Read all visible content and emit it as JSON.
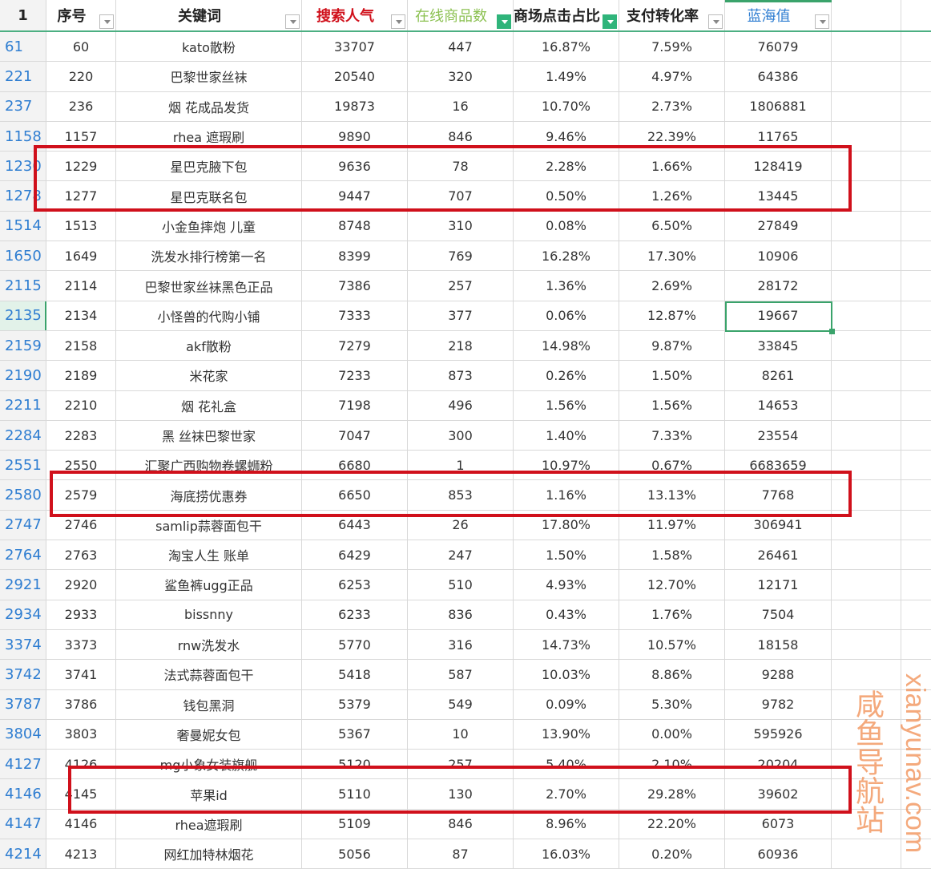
{
  "headers": {
    "corner": "1",
    "c1": "序号",
    "c2": "关键词",
    "c3": "搜索人气",
    "c4": "在线商品数",
    "c5": "商场点击占比",
    "c6": "支付转化率",
    "c7": "蓝海值"
  },
  "header_colors": {
    "c3": "#d0101b",
    "c4": "#8cc152",
    "c7": "#2e7dd1"
  },
  "filter_icon": "dropdown-arrow",
  "active_filter_icon": "funnel-icon",
  "rows": [
    [
      "61",
      "60",
      "kato散粉",
      "33707",
      "447",
      "16.87%",
      "7.59%",
      "76079"
    ],
    [
      "221",
      "220",
      "巴黎世家丝袜",
      "20540",
      "320",
      "1.49%",
      "4.97%",
      "64386"
    ],
    [
      "237",
      "236",
      "烟 花成品发货",
      "19873",
      "16",
      "10.70%",
      "2.73%",
      "1806881"
    ],
    [
      "1158",
      "1157",
      "rhea 遮瑕刷",
      "9890",
      "846",
      "9.46%",
      "22.39%",
      "11765"
    ],
    [
      "1230",
      "1229",
      "星巴克腋下包",
      "9636",
      "78",
      "2.28%",
      "1.66%",
      "128419"
    ],
    [
      "1278",
      "1277",
      "星巴克联名包",
      "9447",
      "707",
      "0.50%",
      "1.26%",
      "13445"
    ],
    [
      "1514",
      "1513",
      "小金鱼摔炮 儿童",
      "8748",
      "310",
      "0.08%",
      "6.50%",
      "27849"
    ],
    [
      "1650",
      "1649",
      "洗发水排行榜第一名",
      "8399",
      "769",
      "16.28%",
      "17.30%",
      "10906"
    ],
    [
      "2115",
      "2114",
      "巴黎世家丝袜黑色正品",
      "7386",
      "257",
      "1.36%",
      "2.69%",
      "28172"
    ],
    [
      "2135",
      "2134",
      "小怪兽的代购小铺",
      "7333",
      "377",
      "0.06%",
      "12.87%",
      "19667"
    ],
    [
      "2159",
      "2158",
      "akf散粉",
      "7279",
      "218",
      "14.98%",
      "9.87%",
      "33845"
    ],
    [
      "2190",
      "2189",
      "米花家",
      "7233",
      "873",
      "0.26%",
      "1.50%",
      "8261"
    ],
    [
      "2211",
      "2210",
      "烟 花礼盒",
      "7198",
      "496",
      "1.56%",
      "1.56%",
      "14653"
    ],
    [
      "2284",
      "2283",
      "黑 丝袜巴黎世家",
      "7047",
      "300",
      "1.40%",
      "7.33%",
      "23554"
    ],
    [
      "2551",
      "2550",
      "汇聚广西购物卷螺蛳粉",
      "6680",
      "1",
      "10.97%",
      "0.67%",
      "6683659"
    ],
    [
      "2580",
      "2579",
      "海底捞优惠券",
      "6650",
      "853",
      "1.16%",
      "13.13%",
      "7768"
    ],
    [
      "2747",
      "2746",
      "samlip蒜蓉面包干",
      "6443",
      "26",
      "17.80%",
      "11.97%",
      "306941"
    ],
    [
      "2764",
      "2763",
      "淘宝人生 账单",
      "6429",
      "247",
      "1.50%",
      "1.58%",
      "26461"
    ],
    [
      "2921",
      "2920",
      "鲨鱼裤ugg正品",
      "6253",
      "510",
      "4.93%",
      "12.70%",
      "12171"
    ],
    [
      "2934",
      "2933",
      "bissnny",
      "6233",
      "836",
      "0.43%",
      "1.76%",
      "7504"
    ],
    [
      "3374",
      "3373",
      "rnw洗发水",
      "5770",
      "316",
      "14.73%",
      "10.57%",
      "18158"
    ],
    [
      "3742",
      "3741",
      "法式蒜蓉面包干",
      "5418",
      "587",
      "10.03%",
      "8.86%",
      "9288"
    ],
    [
      "3787",
      "3786",
      "钱包黑洞",
      "5379",
      "549",
      "0.09%",
      "5.30%",
      "9782"
    ],
    [
      "3804",
      "3803",
      "奢曼妮女包",
      "5367",
      "10",
      "13.90%",
      "0.00%",
      "595926"
    ],
    [
      "4127",
      "4126",
      "mg小象女装旗舰",
      "5120",
      "257",
      "5.40%",
      "2.10%",
      "20204"
    ],
    [
      "4146",
      "4145",
      "苹果id",
      "5110",
      "130",
      "2.70%",
      "29.28%",
      "39602"
    ],
    [
      "4147",
      "4146",
      "rhea遮瑕刷",
      "5109",
      "846",
      "8.96%",
      "22.20%",
      "6073"
    ],
    [
      "4214",
      "4213",
      "网红加特林烟花",
      "5056",
      "87",
      "16.03%",
      "0.20%",
      "60936"
    ]
  ],
  "selected_cell": {
    "row": "2135",
    "column": "蓝海值"
  },
  "highlight_color": "#d0101b",
  "watermark": {
    "line1": "咸鱼导航站",
    "line2": "xianyunav.com"
  }
}
